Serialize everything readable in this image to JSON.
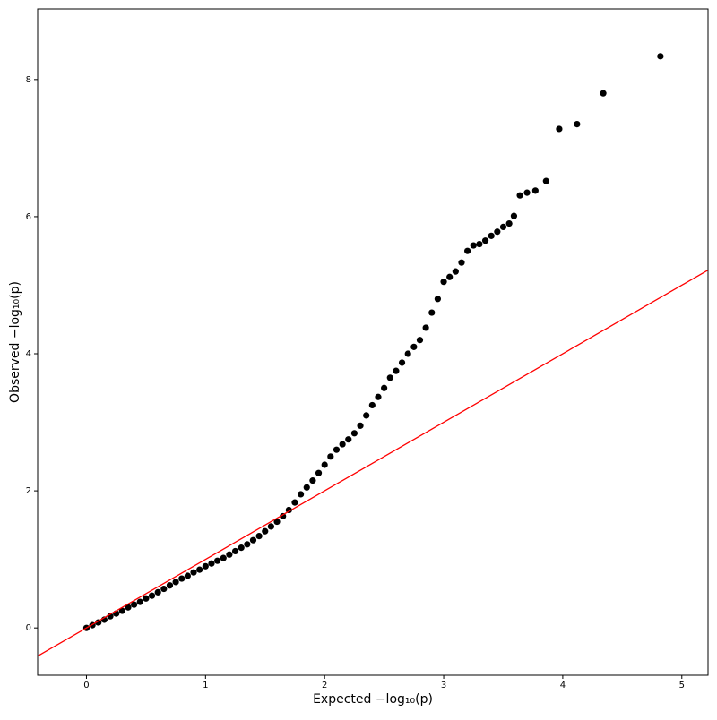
{
  "chart_data": {
    "type": "scatter",
    "x_label": "Expected −log₁₀(p)",
    "y_label": "Observed −log₁₀(p)",
    "x": [
      0,
      0.05,
      0.1,
      0.15,
      0.2,
      0.25,
      0.3,
      0.35,
      0.4,
      0.45,
      0.5,
      0.55,
      0.6,
      0.65,
      0.7,
      0.75,
      0.8,
      0.85,
      0.9,
      0.95,
      1.0,
      1.05,
      1.1,
      1.15,
      1.2,
      1.25,
      1.3,
      1.35,
      1.4,
      1.45,
      1.5,
      1.55,
      1.6,
      1.65,
      1.7,
      1.75,
      1.8,
      1.85,
      1.9,
      1.95,
      2.0,
      2.05,
      2.1,
      2.15,
      2.2,
      2.25,
      2.3,
      2.35,
      2.4,
      2.45,
      2.5,
      2.55,
      2.6,
      2.65,
      2.7,
      2.75,
      2.8,
      2.85,
      2.9,
      2.95,
      3.0,
      3.05,
      3.1,
      3.15,
      3.2,
      3.25,
      3.3,
      3.35,
      3.4,
      3.45,
      3.5,
      3.55,
      3.59,
      3.64,
      3.7,
      3.77,
      3.86,
      3.97,
      4.12,
      4.34,
      4.82
    ],
    "values": [
      0,
      0.04,
      0.08,
      0.12,
      0.17,
      0.21,
      0.25,
      0.3,
      0.34,
      0.38,
      0.43,
      0.47,
      0.52,
      0.57,
      0.62,
      0.67,
      0.72,
      0.76,
      0.81,
      0.85,
      0.9,
      0.94,
      0.98,
      1.02,
      1.07,
      1.12,
      1.17,
      1.22,
      1.28,
      1.34,
      1.41,
      1.48,
      1.55,
      1.63,
      1.72,
      1.83,
      1.95,
      2.05,
      2.15,
      2.26,
      2.38,
      2.5,
      2.6,
      2.68,
      2.75,
      2.84,
      2.95,
      3.1,
      3.25,
      3.37,
      3.5,
      3.65,
      3.75,
      3.87,
      4.0,
      4.1,
      4.2,
      4.38,
      4.6,
      4.8,
      5.05,
      5.12,
      5.2,
      5.33,
      5.5,
      5.58,
      5.6,
      5.65,
      5.72,
      5.78,
      5.85,
      5.9,
      6.01,
      6.31,
      6.35,
      6.38,
      6.52,
      7.28,
      7.35,
      7.8,
      8.34
    ],
    "color": "#000000",
    "diagonal_color": "#ff0000",
    "xlim": [
      -0.41,
      5.22
    ],
    "ylim": [
      -0.69,
      9.03
    ],
    "xticks": [
      0,
      1,
      2,
      3,
      4,
      5
    ],
    "yticks": [
      0,
      2,
      4,
      6,
      8
    ]
  }
}
